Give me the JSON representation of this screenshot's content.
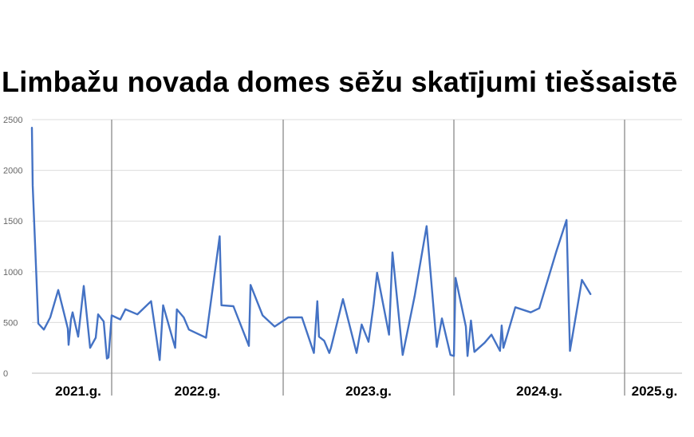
{
  "chart_data": {
    "type": "line",
    "title": "Limbažu novada domes sēžu skatījumi tiešsaistē",
    "xlabel": "",
    "ylabel": "",
    "ylim": [
      0,
      2500
    ],
    "y_ticks": [
      "0",
      "500",
      "1000",
      "1500",
      "2000",
      "2500"
    ],
    "grid": true,
    "year_labels": [
      "2021.g.",
      "2022.g.",
      "2023.g.",
      "2024.g.",
      "2025.g."
    ],
    "line_color": "#4472c4",
    "year_spans": [
      {
        "label": "2021.g.",
        "start": 0,
        "end": 1
      },
      {
        "label": "2022.g.",
        "start": 1,
        "end": 2
      },
      {
        "label": "2023.g.",
        "start": 2,
        "end": 3
      },
      {
        "label": "2024.g.",
        "start": 3,
        "end": 4
      },
      {
        "label": "2025.g.",
        "start": 4,
        "end": 4.35
      }
    ],
    "series": [
      {
        "values": [
          [
            0.0,
            2420
          ],
          [
            0.01,
            1850
          ],
          [
            0.08,
            490
          ],
          [
            0.15,
            430
          ],
          [
            0.23,
            550
          ],
          [
            0.33,
            820
          ],
          [
            0.4,
            600
          ],
          [
            0.45,
            440
          ],
          [
            0.46,
            280
          ],
          [
            0.49,
            530
          ],
          [
            0.51,
            600
          ],
          [
            0.58,
            360
          ],
          [
            0.65,
            860
          ],
          [
            0.73,
            250
          ],
          [
            0.8,
            350
          ],
          [
            0.83,
            580
          ],
          [
            0.9,
            510
          ],
          [
            0.94,
            145
          ],
          [
            0.96,
            155
          ],
          [
            1.0,
            570
          ],
          [
            1.05,
            530
          ],
          [
            1.08,
            630
          ],
          [
            1.15,
            580
          ],
          [
            1.23,
            710
          ],
          [
            1.28,
            130
          ],
          [
            1.3,
            670
          ],
          [
            1.37,
            250
          ],
          [
            1.38,
            630
          ],
          [
            1.42,
            550
          ],
          [
            1.45,
            430
          ],
          [
            1.55,
            350
          ],
          [
            1.63,
            1350
          ],
          [
            1.64,
            670
          ],
          [
            1.71,
            660
          ],
          [
            1.8,
            270
          ],
          [
            1.81,
            870
          ],
          [
            1.88,
            570
          ],
          [
            1.95,
            460
          ],
          [
            2.03,
            550
          ],
          [
            2.11,
            550
          ],
          [
            2.18,
            200
          ],
          [
            2.2,
            710
          ],
          [
            2.21,
            360
          ],
          [
            2.24,
            320
          ],
          [
            2.27,
            200
          ],
          [
            2.28,
            250
          ],
          [
            2.35,
            730
          ],
          [
            2.43,
            200
          ],
          [
            2.46,
            480
          ],
          [
            2.5,
            310
          ],
          [
            2.53,
            680
          ],
          [
            2.55,
            990
          ],
          [
            2.62,
            380
          ],
          [
            2.64,
            1190
          ],
          [
            2.7,
            180
          ],
          [
            2.77,
            760
          ],
          [
            2.84,
            1450
          ],
          [
            2.9,
            260
          ],
          [
            2.93,
            540
          ],
          [
            2.98,
            180
          ],
          [
            3.0,
            170
          ],
          [
            3.01,
            940
          ],
          [
            3.07,
            460
          ],
          [
            3.08,
            170
          ],
          [
            3.1,
            520
          ],
          [
            3.12,
            210
          ],
          [
            3.18,
            300
          ],
          [
            3.22,
            380
          ],
          [
            3.27,
            220
          ],
          [
            3.28,
            470
          ],
          [
            3.29,
            250
          ],
          [
            3.36,
            650
          ],
          [
            3.45,
            600
          ],
          [
            3.5,
            640
          ],
          [
            3.6,
            1200
          ],
          [
            3.66,
            1510
          ],
          [
            3.68,
            220
          ],
          [
            3.75,
            920
          ],
          [
            3.8,
            780
          ]
        ]
      }
    ]
  }
}
